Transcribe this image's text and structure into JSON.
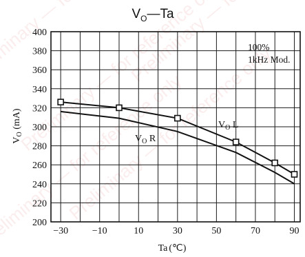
{
  "chart_data": {
    "type": "line",
    "title": {
      "main": "V",
      "sub": "O",
      "rest": "—Ta"
    },
    "xlabel": {
      "main": "Ta",
      "unit": "(℃)"
    },
    "ylabel": {
      "main": "V",
      "sub": "O",
      "rest": " (mA)"
    },
    "xlim": [
      -35,
      93
    ],
    "ylim": [
      200,
      400
    ],
    "x_ticks": [
      -30,
      -10,
      10,
      30,
      50,
      70,
      90
    ],
    "x_tick_labels": [
      "−30",
      "−10",
      "10",
      "30",
      "50",
      "70",
      "90"
    ],
    "y_ticks": [
      200,
      220,
      240,
      260,
      280,
      300,
      320,
      340,
      360,
      380,
      400
    ],
    "grid": true,
    "annotation": {
      "line1": "100%",
      "line2": "1kHz Mod."
    },
    "series": [
      {
        "name": "VO L",
        "label": {
          "main": "V",
          "sub": "O",
          "rest": " L"
        },
        "markers": true,
        "x": [
          -30,
          0,
          30,
          60,
          80,
          90
        ],
        "y": [
          326,
          320,
          309,
          284,
          262,
          250
        ]
      },
      {
        "name": "VO R",
        "label": {
          "main": "V",
          "sub": "O",
          "rest": " R"
        },
        "markers": false,
        "x": [
          -30,
          0,
          30,
          60,
          80,
          90
        ],
        "y": [
          316,
          309,
          295,
          273,
          252,
          240
        ]
      }
    ]
  },
  "watermark": "Preliminary — for reference only"
}
